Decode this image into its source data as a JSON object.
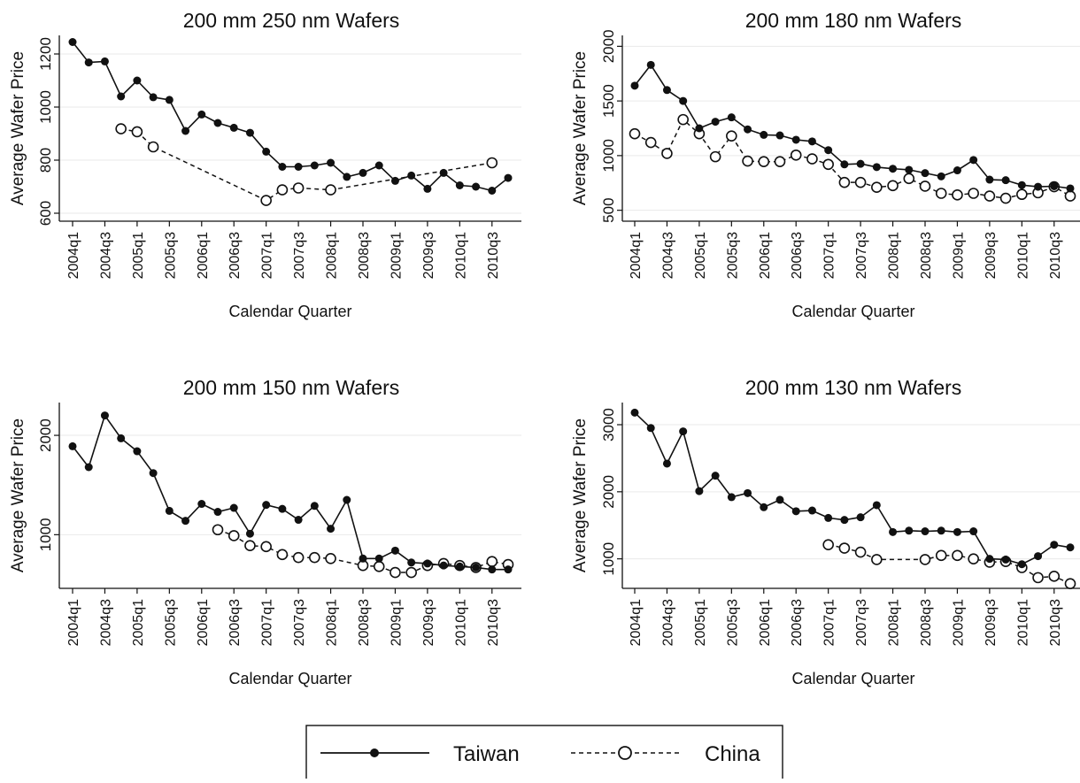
{
  "legend": {
    "placement": "bottom-center",
    "entries": [
      {
        "label": "Taiwan",
        "style": "solid-filled-dot"
      },
      {
        "label": "China",
        "style": "dashed-open-circle"
      }
    ]
  },
  "chart_data": [
    {
      "type": "line",
      "title": "200 mm 250 nm Wafers",
      "xlabel": "Calendar Quarter",
      "ylabel": "Average Wafer Price",
      "x": [
        "2004q1",
        "2004q2",
        "2004q3",
        "2004q4",
        "2005q1",
        "2005q2",
        "2005q3",
        "2005q4",
        "2006q1",
        "2006q2",
        "2006q3",
        "2006q4",
        "2007q1",
        "2007q2",
        "2007q3",
        "2007q4",
        "2008q1",
        "2008q2",
        "2008q3",
        "2008q4",
        "2009q1",
        "2009q2",
        "2009q3",
        "2009q4",
        "2010q1",
        "2010q2",
        "2010q3",
        "2010q4"
      ],
      "xticks": [
        "2004q1",
        "2004q3",
        "2005q1",
        "2005q3",
        "2006q1",
        "2006q3",
        "2007q1",
        "2007q3",
        "2008q1",
        "2008q3",
        "2009q1",
        "2009q3",
        "2010q1",
        "2010q3"
      ],
      "yticks": [
        600,
        800,
        1000,
        1200
      ],
      "ylim": [
        570,
        1270
      ],
      "grid": true,
      "series": [
        {
          "name": "Taiwan",
          "values": [
            1245,
            1168,
            1172,
            1040,
            1100,
            1037,
            1027,
            910,
            972,
            940,
            922,
            903,
            832,
            775,
            775,
            780,
            790,
            737,
            752,
            780,
            722,
            742,
            692,
            752,
            705,
            700,
            685,
            733
          ]
        },
        {
          "name": "China",
          "values": [
            null,
            null,
            null,
            918,
            907,
            850,
            null,
            null,
            null,
            null,
            null,
            null,
            648,
            688,
            695,
            null,
            688,
            null,
            null,
            null,
            null,
            null,
            null,
            null,
            null,
            null,
            790,
            null
          ]
        }
      ]
    },
    {
      "type": "line",
      "title": "200 mm 180 nm Wafers",
      "xlabel": "Calendar Quarter",
      "ylabel": "Average Wafer Price",
      "x": [
        "2004q1",
        "2004q2",
        "2004q3",
        "2004q4",
        "2005q1",
        "2005q2",
        "2005q3",
        "2005q4",
        "2006q1",
        "2006q2",
        "2006q3",
        "2006q4",
        "2007q1",
        "2007q2",
        "2007q3",
        "2007q4",
        "2008q1",
        "2008q2",
        "2008q3",
        "2008q4",
        "2009q1",
        "2009q2",
        "2009q3",
        "2009q4",
        "2010q1",
        "2010q2",
        "2010q3",
        "2010q4"
      ],
      "xticks": [
        "2004q1",
        "2004q3",
        "2005q1",
        "2005q3",
        "2006q1",
        "2006q3",
        "2007q1",
        "2007q3",
        "2008q1",
        "2008q3",
        "2009q1",
        "2009q3",
        "2010q1",
        "2010q3"
      ],
      "yticks": [
        500,
        1000,
        1500,
        2000
      ],
      "ylim": [
        400,
        2100
      ],
      "grid": true,
      "series": [
        {
          "name": "Taiwan",
          "values": [
            1640,
            1830,
            1600,
            1500,
            1250,
            1310,
            1350,
            1240,
            1190,
            1185,
            1145,
            1130,
            1050,
            920,
            925,
            895,
            880,
            870,
            840,
            810,
            865,
            960,
            780,
            775,
            730,
            715,
            720,
            700
          ]
        },
        {
          "name": "China",
          "values": [
            1200,
            1120,
            1020,
            1330,
            1200,
            990,
            1180,
            950,
            945,
            945,
            1005,
            970,
            920,
            755,
            755,
            710,
            725,
            790,
            720,
            655,
            640,
            655,
            630,
            610,
            645,
            660,
            715,
            630
          ]
        }
      ]
    },
    {
      "type": "line",
      "title": "200 mm 150 nm Wafers",
      "xlabel": "Calendar Quarter",
      "ylabel": "Average Wafer Price",
      "x": [
        "2004q1",
        "2004q2",
        "2004q3",
        "2004q4",
        "2005q1",
        "2005q2",
        "2005q3",
        "2005q4",
        "2006q1",
        "2006q2",
        "2006q3",
        "2006q4",
        "2007q1",
        "2007q2",
        "2007q3",
        "2007q4",
        "2008q1",
        "2008q2",
        "2008q3",
        "2008q4",
        "2009q1",
        "2009q2",
        "2009q3",
        "2009q4",
        "2010q1",
        "2010q2",
        "2010q3",
        "2010q4"
      ],
      "xticks": [
        "2004q1",
        "2004q3",
        "2005q1",
        "2005q3",
        "2006q1",
        "2006q3",
        "2007q1",
        "2007q3",
        "2008q1",
        "2008q3",
        "2009q1",
        "2009q3",
        "2010q1",
        "2010q3"
      ],
      "yticks": [
        1000,
        2000
      ],
      "ylim": [
        460,
        2330
      ],
      "grid": true,
      "series": [
        {
          "name": "Taiwan",
          "values": [
            1890,
            1680,
            2200,
            1970,
            1840,
            1620,
            1240,
            1140,
            1310,
            1230,
            1270,
            1010,
            1300,
            1260,
            1150,
            1290,
            1060,
            1350,
            760,
            760,
            840,
            720,
            710,
            690,
            680,
            670,
            650,
            650
          ]
        },
        {
          "name": "China",
          "values": [
            null,
            null,
            null,
            null,
            null,
            null,
            null,
            null,
            null,
            1050,
            990,
            890,
            880,
            800,
            770,
            770,
            760,
            null,
            690,
            680,
            620,
            620,
            690,
            710,
            690,
            670,
            730,
            700
          ]
        }
      ]
    },
    {
      "type": "line",
      "title": "200 mm 130 nm Wafers",
      "xlabel": "Calendar Quarter",
      "ylabel": "Average Wafer Price",
      "x": [
        "2004q1",
        "2004q2",
        "2004q3",
        "2004q4",
        "2005q1",
        "2005q2",
        "2005q3",
        "2005q4",
        "2006q1",
        "2006q2",
        "2006q3",
        "2006q4",
        "2007q1",
        "2007q2",
        "2007q3",
        "2007q4",
        "2008q1",
        "2008q2",
        "2008q3",
        "2008q4",
        "2009q1",
        "2009q2",
        "2009q3",
        "2009q4",
        "2010q1",
        "2010q2",
        "2010q3",
        "2010q4"
      ],
      "xticks": [
        "2004q1",
        "2004q3",
        "2005q1",
        "2005q3",
        "2006q1",
        "2006q3",
        "2007q1",
        "2007q3",
        "2008q1",
        "2008q3",
        "2009q1",
        "2009q3",
        "2010q1",
        "2010q3"
      ],
      "yticks": [
        1000,
        2000,
        3000
      ],
      "ylim": [
        560,
        3330
      ],
      "grid": true,
      "series": [
        {
          "name": "Taiwan",
          "values": [
            3180,
            2950,
            2420,
            2900,
            2010,
            2240,
            1920,
            1980,
            1770,
            1880,
            1710,
            1720,
            1610,
            1580,
            1620,
            1800,
            1400,
            1420,
            1410,
            1420,
            1400,
            1410,
            1000,
            990,
            920,
            1040,
            1210,
            1170
          ]
        },
        {
          "name": "China",
          "values": [
            null,
            null,
            null,
            null,
            null,
            null,
            null,
            null,
            null,
            null,
            null,
            null,
            1210,
            1160,
            1100,
            990,
            null,
            null,
            990,
            1050,
            1050,
            1000,
            950,
            960,
            870,
            720,
            740,
            630
          ]
        }
      ]
    }
  ]
}
